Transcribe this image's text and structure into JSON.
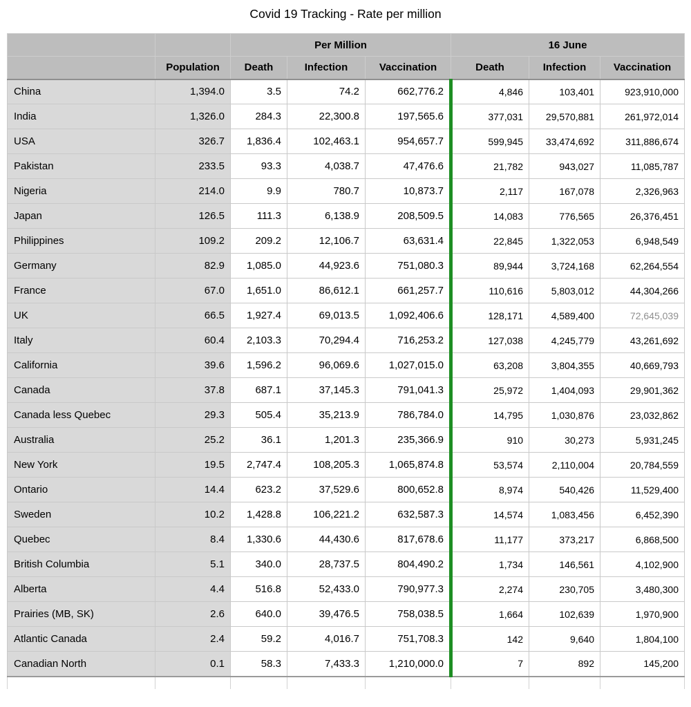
{
  "title": "Covid 19 Tracking - Rate per million",
  "colors": {
    "green_divider": "#1e8e23",
    "header_bg": "#bdbdbd",
    "label_bg": "#d9d9d9",
    "muted_text": "#8e8e8e",
    "grid_border": "#c9c9c9"
  },
  "table": {
    "group_headers": [
      {
        "label": ""
      },
      {
        "label": "Per Million"
      },
      {
        "label": "16 June"
      }
    ],
    "column_headers": [
      "",
      "Population",
      "Death",
      "Infection",
      "Vaccination",
      "Death",
      "Infection",
      "Vaccination"
    ],
    "rows": [
      {
        "name": "China",
        "population": "1,394.0",
        "pm_death": "3.5",
        "pm_infection": "74.2",
        "pm_vaccination": "662,776.2",
        "j16_death": "4,846",
        "j16_infection": "103,401",
        "j16_vaccination": "923,910,000"
      },
      {
        "name": "India",
        "population": "1,326.0",
        "pm_death": "284.3",
        "pm_infection": "22,300.8",
        "pm_vaccination": "197,565.6",
        "j16_death": "377,031",
        "j16_infection": "29,570,881",
        "j16_vaccination": "261,972,014"
      },
      {
        "name": "USA",
        "population": "326.7",
        "pm_death": "1,836.4",
        "pm_infection": "102,463.1",
        "pm_vaccination": "954,657.7",
        "j16_death": "599,945",
        "j16_infection": "33,474,692",
        "j16_vaccination": "311,886,674"
      },
      {
        "name": "Pakistan",
        "population": "233.5",
        "pm_death": "93.3",
        "pm_infection": "4,038.7",
        "pm_vaccination": "47,476.6",
        "j16_death": "21,782",
        "j16_infection": "943,027",
        "j16_vaccination": "11,085,787"
      },
      {
        "name": "Nigeria",
        "population": "214.0",
        "pm_death": "9.9",
        "pm_infection": "780.7",
        "pm_vaccination": "10,873.7",
        "j16_death": "2,117",
        "j16_infection": "167,078",
        "j16_vaccination": "2,326,963"
      },
      {
        "name": "Japan",
        "population": "126.5",
        "pm_death": "111.3",
        "pm_infection": "6,138.9",
        "pm_vaccination": "208,509.5",
        "j16_death": "14,083",
        "j16_infection": "776,565",
        "j16_vaccination": "26,376,451"
      },
      {
        "name": "Philippines",
        "population": "109.2",
        "pm_death": "209.2",
        "pm_infection": "12,106.7",
        "pm_vaccination": "63,631.4",
        "j16_death": "22,845",
        "j16_infection": "1,322,053",
        "j16_vaccination": "6,948,549"
      },
      {
        "name": "Germany",
        "population": "82.9",
        "pm_death": "1,085.0",
        "pm_infection": "44,923.6",
        "pm_vaccination": "751,080.3",
        "j16_death": "89,944",
        "j16_infection": "3,724,168",
        "j16_vaccination": "62,264,554"
      },
      {
        "name": "France",
        "population": "67.0",
        "pm_death": "1,651.0",
        "pm_infection": "86,612.1",
        "pm_vaccination": "661,257.7",
        "j16_death": "110,616",
        "j16_infection": "5,803,012",
        "j16_vaccination": "44,304,266"
      },
      {
        "name": "UK",
        "population": "66.5",
        "pm_death": "1,927.4",
        "pm_infection": "69,013.5",
        "pm_vaccination": "1,092,406.6",
        "j16_death": "128,171",
        "j16_infection": "4,589,400",
        "j16_vaccination": "72,645,039",
        "muted": [
          "j16_vaccination"
        ]
      },
      {
        "name": "Italy",
        "population": "60.4",
        "pm_death": "2,103.3",
        "pm_infection": "70,294.4",
        "pm_vaccination": "716,253.2",
        "j16_death": "127,038",
        "j16_infection": "4,245,779",
        "j16_vaccination": "43,261,692"
      },
      {
        "name": "California",
        "population": "39.6",
        "pm_death": "1,596.2",
        "pm_infection": "96,069.6",
        "pm_vaccination": "1,027,015.0",
        "j16_death": "63,208",
        "j16_infection": "3,804,355",
        "j16_vaccination": "40,669,793"
      },
      {
        "name": "Canada",
        "population": "37.8",
        "pm_death": "687.1",
        "pm_infection": "37,145.3",
        "pm_vaccination": "791,041.3",
        "j16_death": "25,972",
        "j16_infection": "1,404,093",
        "j16_vaccination": "29,901,362"
      },
      {
        "name": "Canada less Quebec",
        "population": "29.3",
        "pm_death": "505.4",
        "pm_infection": "35,213.9",
        "pm_vaccination": "786,784.0",
        "j16_death": "14,795",
        "j16_infection": "1,030,876",
        "j16_vaccination": "23,032,862"
      },
      {
        "name": "Australia",
        "population": "25.2",
        "pm_death": "36.1",
        "pm_infection": "1,201.3",
        "pm_vaccination": "235,366.9",
        "j16_death": "910",
        "j16_infection": "30,273",
        "j16_vaccination": "5,931,245"
      },
      {
        "name": "New York",
        "population": "19.5",
        "pm_death": "2,747.4",
        "pm_infection": "108,205.3",
        "pm_vaccination": "1,065,874.8",
        "j16_death": "53,574",
        "j16_infection": "2,110,004",
        "j16_vaccination": "20,784,559"
      },
      {
        "name": "Ontario",
        "population": "14.4",
        "pm_death": "623.2",
        "pm_infection": "37,529.6",
        "pm_vaccination": "800,652.8",
        "j16_death": "8,974",
        "j16_infection": "540,426",
        "j16_vaccination": "11,529,400"
      },
      {
        "name": "Sweden",
        "population": "10.2",
        "pm_death": "1,428.8",
        "pm_infection": "106,221.2",
        "pm_vaccination": "632,587.3",
        "j16_death": "14,574",
        "j16_infection": "1,083,456",
        "j16_vaccination": "6,452,390"
      },
      {
        "name": "Quebec",
        "population": "8.4",
        "pm_death": "1,330.6",
        "pm_infection": "44,430.6",
        "pm_vaccination": "817,678.6",
        "j16_death": "11,177",
        "j16_infection": "373,217",
        "j16_vaccination": "6,868,500"
      },
      {
        "name": "British Columbia",
        "population": "5.1",
        "pm_death": "340.0",
        "pm_infection": "28,737.5",
        "pm_vaccination": "804,490.2",
        "j16_death": "1,734",
        "j16_infection": "146,561",
        "j16_vaccination": "4,102,900"
      },
      {
        "name": "Alberta",
        "population": "4.4",
        "pm_death": "516.8",
        "pm_infection": "52,433.0",
        "pm_vaccination": "790,977.3",
        "j16_death": "2,274",
        "j16_infection": "230,705",
        "j16_vaccination": "3,480,300"
      },
      {
        "name": "Prairies (MB, SK)",
        "population": "2.6",
        "pm_death": "640.0",
        "pm_infection": "39,476.5",
        "pm_vaccination": "758,038.5",
        "j16_death": "1,664",
        "j16_infection": "102,639",
        "j16_vaccination": "1,970,900"
      },
      {
        "name": "Atlantic Canada",
        "population": "2.4",
        "pm_death": "59.2",
        "pm_infection": "4,016.7",
        "pm_vaccination": "751,708.3",
        "j16_death": "142",
        "j16_infection": "9,640",
        "j16_vaccination": "1,804,100"
      },
      {
        "name": "Canadian North",
        "population": "0.1",
        "pm_death": "58.3",
        "pm_infection": "7,433.3",
        "pm_vaccination": "1,210,000.0",
        "j16_death": "7",
        "j16_infection": "892",
        "j16_vaccination": "145,200"
      }
    ]
  }
}
